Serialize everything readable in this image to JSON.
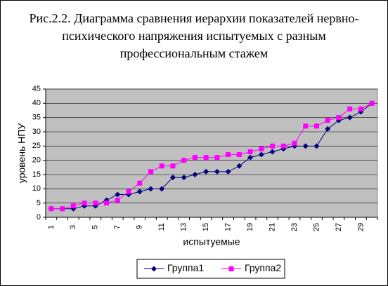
{
  "chart_data": {
    "type": "line",
    "title": "Рис.2.2. Диаграмма сравнения иерархии показателей нервно-психического напряжения испытуемых с разным профессиональным стажем",
    "xlabel": "испытуемые",
    "ylabel": "уровень НПУ",
    "categories": [
      "1",
      null,
      "3",
      null,
      "5",
      null,
      "7",
      null,
      "9",
      null,
      "11",
      null,
      "13",
      null,
      "15",
      null,
      "17",
      null,
      "19",
      null,
      "21",
      null,
      "23",
      null,
      "25",
      null,
      "27",
      null,
      "29",
      null
    ],
    "series": [
      {
        "name": "Группа1",
        "color": "#000080",
        "marker": "diamond",
        "values": [
          3,
          3,
          3,
          4,
          4,
          6,
          8,
          8,
          9,
          10,
          10,
          14,
          14,
          15,
          16,
          16,
          16,
          18,
          21,
          22,
          23,
          24,
          25,
          25,
          25,
          31,
          34,
          35,
          37,
          40
        ]
      },
      {
        "name": "Группа2",
        "color": "#ff00ff",
        "marker": "square",
        "values": [
          3,
          3,
          4,
          5,
          5,
          5,
          6,
          9,
          12,
          16,
          18,
          18,
          20,
          21,
          21,
          21,
          22,
          22,
          23,
          24,
          25,
          25,
          26,
          32,
          32,
          34,
          35,
          38,
          38,
          40
        ]
      }
    ],
    "ylim": [
      0,
      45
    ],
    "yticks": [
      0,
      5,
      10,
      15,
      20,
      25,
      30,
      35,
      40,
      45
    ],
    "grid": true,
    "legend": "bottom"
  }
}
